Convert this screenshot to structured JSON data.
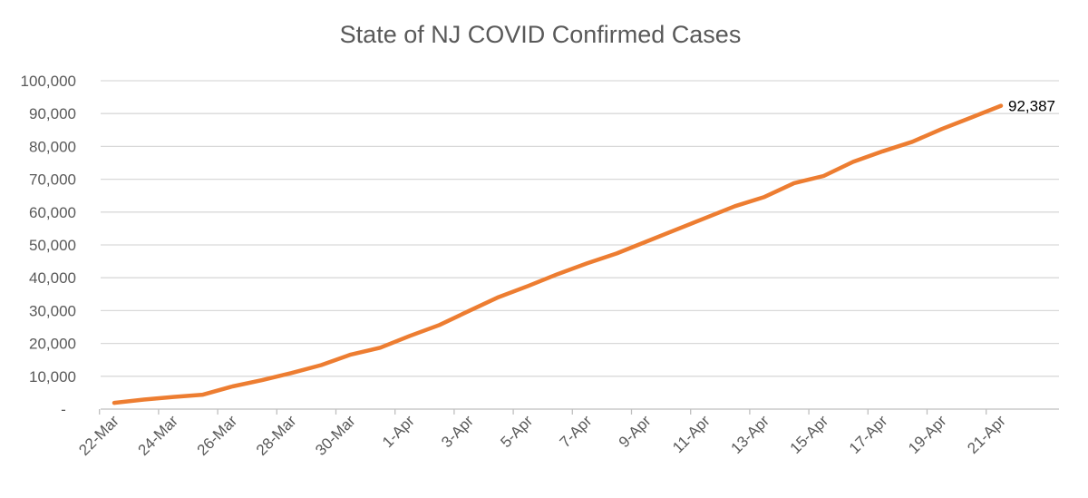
{
  "chart_data": {
    "type": "line",
    "title": "State of NJ COVID Confirmed Cases",
    "xlabel": "",
    "ylabel": "",
    "x_tick_labels": [
      "22-Mar",
      "24-Mar",
      "26-Mar",
      "28-Mar",
      "30-Mar",
      "1-Apr",
      "3-Apr",
      "5-Apr",
      "7-Apr",
      "9-Apr",
      "11-Apr",
      "13-Apr",
      "15-Apr",
      "17-Apr",
      "19-Apr",
      "21-Apr"
    ],
    "y_tick_labels": [
      "-",
      "10,000",
      "20,000",
      "30,000",
      "40,000",
      "50,000",
      "60,000",
      "70,000",
      "80,000",
      "90,000",
      "100,000"
    ],
    "ylim": [
      0,
      100000
    ],
    "y_step": 10000,
    "grid": true,
    "legend": "none",
    "series": [
      {
        "color": "#ed7d31",
        "points": [
          {
            "x": "22-Mar",
            "y": 1900
          },
          {
            "x": "23-Mar",
            "y": 2900
          },
          {
            "x": "24-Mar",
            "y": 3700
          },
          {
            "x": "25-Mar",
            "y": 4400
          },
          {
            "x": "26-Mar",
            "y": 6900
          },
          {
            "x": "27-Mar",
            "y": 8800
          },
          {
            "x": "28-Mar",
            "y": 11000
          },
          {
            "x": "29-Mar",
            "y": 13400
          },
          {
            "x": "30-Mar",
            "y": 16600
          },
          {
            "x": "31-Mar",
            "y": 18700
          },
          {
            "x": "1-Apr",
            "y": 22300
          },
          {
            "x": "2-Apr",
            "y": 25600
          },
          {
            "x": "3-Apr",
            "y": 29900
          },
          {
            "x": "4-Apr",
            "y": 34100
          },
          {
            "x": "5-Apr",
            "y": 37500
          },
          {
            "x": "6-Apr",
            "y": 41100
          },
          {
            "x": "7-Apr",
            "y": 44400
          },
          {
            "x": "8-Apr",
            "y": 47400
          },
          {
            "x": "9-Apr",
            "y": 51000
          },
          {
            "x": "10-Apr",
            "y": 54600
          },
          {
            "x": "11-Apr",
            "y": 58200
          },
          {
            "x": "12-Apr",
            "y": 61800
          },
          {
            "x": "13-Apr",
            "y": 64600
          },
          {
            "x": "14-Apr",
            "y": 68800
          },
          {
            "x": "15-Apr",
            "y": 71000
          },
          {
            "x": "16-Apr",
            "y": 75300
          },
          {
            "x": "17-Apr",
            "y": 78500
          },
          {
            "x": "18-Apr",
            "y": 81400
          },
          {
            "x": "19-Apr",
            "y": 85300
          },
          {
            "x": "20-Apr",
            "y": 88800
          },
          {
            "x": "21-Apr",
            "y": 92387
          }
        ]
      }
    ],
    "annotations": [
      {
        "x": "21-Apr",
        "y": 92387,
        "text": "92,387"
      }
    ]
  }
}
